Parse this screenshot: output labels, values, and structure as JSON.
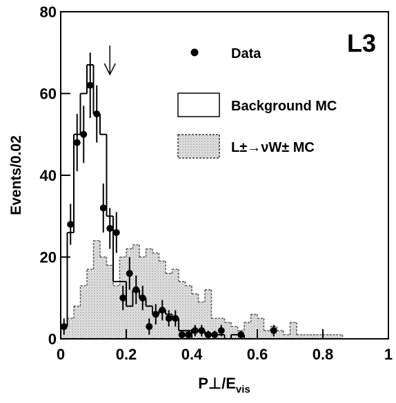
{
  "chart_data": {
    "type": "histogram",
    "tag": "L3",
    "x_label": [
      "P⊥/E",
      "vis"
    ],
    "y_label": "Events/0.02",
    "xlim": [
      0,
      1
    ],
    "ylim": [
      0,
      80
    ],
    "xticks": [
      0,
      0.2,
      0.4,
      0.6,
      0.8,
      1
    ],
    "yticks": [
      0,
      20,
      40,
      60,
      80
    ],
    "cut_arrow": 0.15,
    "bins": [
      0,
      0.02,
      0.04,
      0.06,
      0.08,
      0.1,
      0.12,
      0.14,
      0.16,
      0.18,
      0.2,
      0.22,
      0.24,
      0.26,
      0.28,
      0.3,
      0.32,
      0.34,
      0.36,
      0.38,
      0.4,
      0.42,
      0.44,
      0.46,
      0.48,
      0.5,
      0.52,
      0.54,
      0.56,
      0.58,
      0.6,
      0.62,
      0.64,
      0.66,
      0.68,
      0.7,
      0.72,
      0.74,
      0.76,
      0.78,
      0.8,
      0.82,
      0.84,
      0.86,
      0.88,
      0.9,
      0.92,
      0.94,
      0.96,
      0.98,
      1
    ],
    "series": [
      {
        "name": "Background MC",
        "style": "step",
        "color": "#000000",
        "values": [
          3,
          26,
          50,
          60,
          67,
          55,
          50,
          30,
          14,
          14,
          8,
          12,
          10,
          8,
          6,
          7,
          6,
          5,
          2,
          2,
          2,
          2,
          1,
          1,
          1,
          0,
          1,
          1,
          0,
          0,
          0,
          0,
          0,
          0,
          0,
          0,
          0,
          0,
          0,
          0,
          0,
          0,
          0,
          0,
          0,
          0,
          0,
          0,
          0,
          0
        ]
      },
      {
        "name": "L±→νW± MC",
        "style": "shaded",
        "color": "#555555",
        "values": [
          3,
          5,
          8,
          13,
          17,
          24,
          20,
          18,
          13,
          20,
          22,
          23,
          20,
          22,
          21,
          19,
          16,
          17,
          14,
          13,
          11,
          9,
          12,
          5,
          5,
          4,
          3,
          2,
          4,
          6,
          5,
          2,
          3,
          2,
          1,
          4,
          1,
          1,
          1,
          1,
          1,
          1,
          1,
          0,
          0,
          0,
          0,
          0,
          0,
          0
        ]
      }
    ],
    "points": {
      "name": "Data",
      "color": "#000000",
      "x": [
        0.01,
        0.03,
        0.05,
        0.07,
        0.09,
        0.11,
        0.13,
        0.15,
        0.17,
        0.19,
        0.21,
        0.23,
        0.25,
        0.27,
        0.29,
        0.31,
        0.33,
        0.35,
        0.37,
        0.39,
        0.41,
        0.43,
        0.45,
        0.47,
        0.49,
        0.55,
        0.65
      ],
      "values": [
        3,
        28,
        48,
        50,
        62,
        55,
        32,
        27,
        26,
        10,
        16,
        12,
        10,
        3,
        6,
        7,
        5,
        5,
        1,
        1,
        2,
        2,
        1,
        1,
        2,
        1,
        2
      ],
      "errors": [
        2,
        5,
        7,
        7,
        8,
        7,
        6,
        5,
        5,
        3,
        4,
        3.5,
        3,
        2,
        2.5,
        2.5,
        2,
        2,
        1,
        1,
        1.4,
        1.4,
        1,
        1,
        1.4,
        1,
        1.4
      ]
    }
  }
}
